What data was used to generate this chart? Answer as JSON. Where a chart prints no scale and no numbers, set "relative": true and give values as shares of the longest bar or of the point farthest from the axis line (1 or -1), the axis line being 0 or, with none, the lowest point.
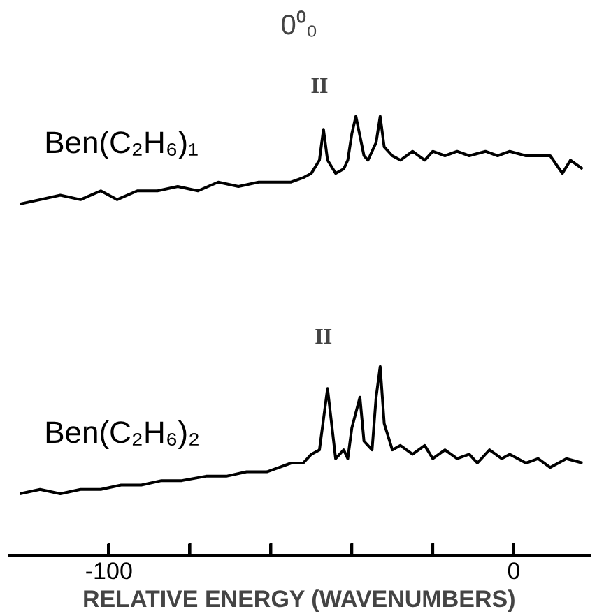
{
  "chart_data": {
    "type": "line",
    "title": "0⁰₀",
    "xlabel": "RELATIVE ENERGY (WAVENUMBERS)",
    "relative": true,
    "grid": false,
    "marker": "none",
    "line_style": "solid",
    "xlim": [
      -125,
      19
    ],
    "xticks": [
      -100,
      {
        "value": -80,
        "label": null
      },
      {
        "value": -60,
        "label": null
      },
      {
        "value": -40,
        "label": null
      },
      {
        "value": -20,
        "label": null
      },
      0
    ],
    "series": [
      {
        "name": "Ben(C₂H₆)₁",
        "color": "#000000",
        "x": [
          -122,
          -117,
          -112,
          -107,
          -102,
          -98,
          -93,
          -88,
          -83,
          -78,
          -73,
          -68,
          -63,
          -58,
          -55,
          -52,
          -50,
          -48,
          -47,
          -46,
          -44,
          -42,
          -41,
          -40,
          -39,
          -37,
          -36,
          -34,
          -33,
          -32,
          -30,
          -28,
          -25,
          -22,
          -20,
          -17,
          -14,
          -11,
          -7,
          -4,
          -1,
          3,
          6,
          9,
          12,
          14,
          17
        ],
        "values": [
          0.8,
          0.81,
          0.82,
          0.81,
          0.83,
          0.81,
          0.83,
          0.83,
          0.84,
          0.83,
          0.85,
          0.84,
          0.85,
          0.85,
          0.85,
          0.86,
          0.87,
          0.9,
          0.97,
          0.9,
          0.87,
          0.88,
          0.9,
          0.96,
          1.0,
          0.91,
          0.9,
          0.94,
          1.0,
          0.93,
          0.91,
          0.9,
          0.92,
          0.9,
          0.92,
          0.91,
          0.92,
          0.91,
          0.92,
          0.91,
          0.92,
          0.91,
          0.91,
          0.91,
          0.87,
          0.9,
          0.88
        ]
      },
      {
        "name": "Ben(C₂H₆)₂",
        "color": "#000000",
        "x": [
          -122,
          -117,
          -112,
          -107,
          -102,
          -97,
          -92,
          -87,
          -82,
          -76,
          -71,
          -66,
          -61,
          -58,
          -55,
          -52,
          -50,
          -48,
          -47,
          -46,
          -45,
          -44,
          -42,
          -41,
          -40,
          -38,
          -37,
          -35,
          -34,
          -33,
          -32,
          -30,
          -28,
          -25,
          -22,
          -20,
          -17,
          -14,
          -11,
          -9,
          -6,
          -3,
          -1,
          3,
          6,
          9,
          13,
          17
        ],
        "values": [
          0.14,
          0.15,
          0.14,
          0.15,
          0.15,
          0.16,
          0.16,
          0.17,
          0.17,
          0.18,
          0.18,
          0.19,
          0.19,
          0.2,
          0.21,
          0.21,
          0.23,
          0.24,
          0.31,
          0.38,
          0.3,
          0.22,
          0.24,
          0.22,
          0.29,
          0.36,
          0.26,
          0.24,
          0.36,
          0.43,
          0.3,
          0.24,
          0.25,
          0.23,
          0.25,
          0.22,
          0.24,
          0.22,
          0.23,
          0.21,
          0.24,
          0.22,
          0.23,
          0.21,
          0.22,
          0.2,
          0.22,
          0.21
        ]
      }
    ],
    "annotations": [
      "II",
      "II"
    ]
  }
}
